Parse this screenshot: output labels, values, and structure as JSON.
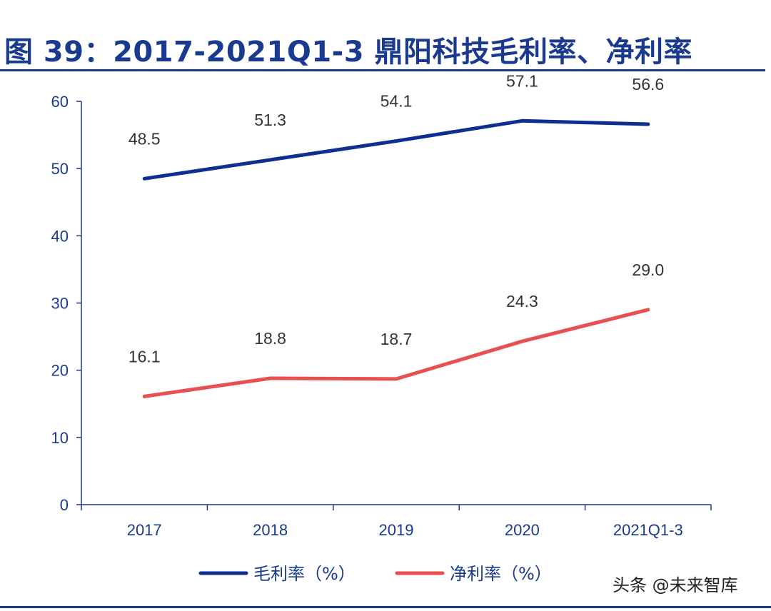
{
  "chart_data": {
    "type": "line",
    "title": "图 39：2017-2021Q1-3 鼎阳科技毛利率、净利率",
    "categories": [
      "2017",
      "2018",
      "2019",
      "2020",
      "2021Q1-3"
    ],
    "ylim": [
      0,
      60
    ],
    "yticks": [
      0,
      10,
      20,
      30,
      40,
      50,
      60
    ],
    "xlabel": "",
    "ylabel": "",
    "grid": false,
    "legend_position": "bottom",
    "series": [
      {
        "name": "毛利率（%）",
        "color": "#0d2f8f",
        "values": [
          48.5,
          51.3,
          54.1,
          57.1,
          56.6
        ],
        "labels": [
          "48.5",
          "51.3",
          "54.1",
          "57.1",
          "56.6"
        ]
      },
      {
        "name": "净利率（%）",
        "color": "#e8504f",
        "values": [
          16.1,
          18.8,
          18.7,
          24.3,
          29.0
        ],
        "labels": [
          "16.1",
          "18.8",
          "18.7",
          "24.3",
          "29.0"
        ]
      }
    ]
  },
  "watermark": "头条 @未来智库"
}
